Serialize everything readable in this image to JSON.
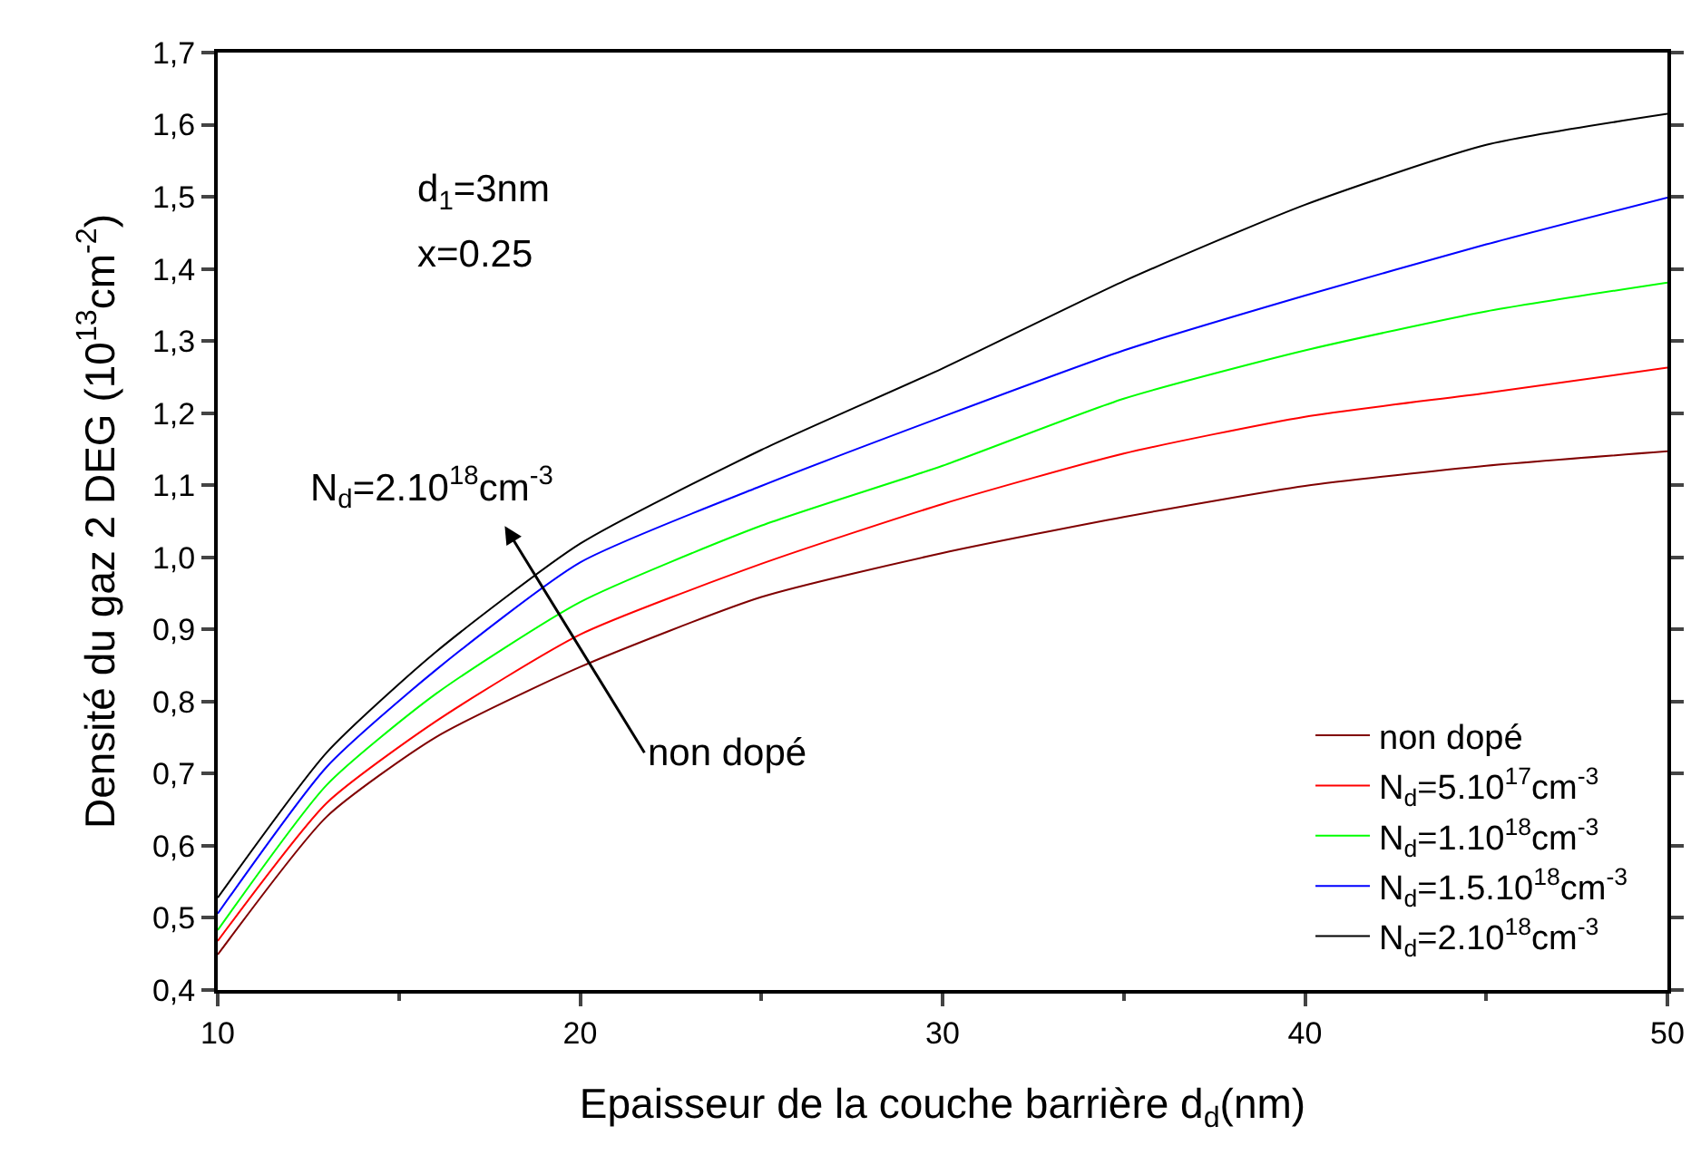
{
  "chart_data": {
    "type": "line",
    "xlabel": "Epaisseur de la couche barrière d$_{d}$(nm)",
    "ylabel": "Densité du gaz 2 DEG (10$^{13}$cm$^{-2}$)",
    "x": [
      10,
      13,
      16,
      20,
      25,
      30,
      35,
      40,
      45,
      50
    ],
    "series": [
      {
        "name": "non dopé",
        "color": "#800000",
        "values": [
          0.449,
          0.64,
          0.75,
          0.848,
          0.945,
          1.006,
          1.056,
          1.099,
          1.127,
          1.147
        ]
      },
      {
        "name": "N$_{d}$=5.10$^{17}$cm$^{-3}$",
        "color": "#ff0000",
        "values": [
          0.468,
          0.659,
          0.772,
          0.893,
          0.991,
          1.074,
          1.144,
          1.195,
          1.228,
          1.263
        ]
      },
      {
        "name": "N$_{d}$=1.10$^{18}$cm$^{-3}$",
        "color": "#00ff00",
        "values": [
          0.483,
          0.684,
          0.81,
          0.938,
          1.044,
          1.127,
          1.22,
          1.287,
          1.341,
          1.381
        ]
      },
      {
        "name": "N$_{d}$=1.5.10$^{18}$cm$^{-3}$",
        "color": "#0000ff",
        "values": [
          0.506,
          0.709,
          0.843,
          0.993,
          1.099,
          1.195,
          1.287,
          1.363,
          1.434,
          1.499
        ]
      },
      {
        "name": "N$_{d}$=2.10$^{18}$cm$^{-3}$",
        "color": "#000000",
        "values": [
          0.528,
          0.729,
          0.868,
          1.019,
          1.149,
          1.262,
          1.383,
          1.489,
          1.572,
          1.615
        ]
      }
    ],
    "xlim": [
      10,
      50
    ],
    "xticks": [
      10,
      20,
      30,
      40,
      50
    ],
    "ylim": [
      0.4,
      1.7
    ],
    "yticks": [
      {
        "value": 0.4,
        "label": "0,4"
      },
      {
        "value": 0.5,
        "label": "0,5"
      },
      {
        "value": 0.6,
        "label": "0,6"
      },
      {
        "value": 0.7,
        "label": "0,7"
      },
      {
        "value": 0.8,
        "label": "0,8"
      },
      {
        "value": 0.9,
        "label": "0,9"
      },
      {
        "value": 1.0,
        "label": "1,0"
      },
      {
        "value": 1.1,
        "label": "1,1"
      },
      {
        "value": 1.2,
        "label": "1,2"
      },
      {
        "value": 1.3,
        "label": "1,3"
      },
      {
        "value": 1.4,
        "label": "1,4"
      },
      {
        "value": 1.5,
        "label": "1,5"
      },
      {
        "value": 1.6,
        "label": "1,6"
      },
      {
        "value": 1.7,
        "label": "1,7"
      }
    ],
    "annotations": [
      "d$_{1}$=3nm",
      "x=0.25",
      "non dopé",
      "N$_{d}$=2.10$^{18}$cm$^{-3}$"
    ],
    "grid": false,
    "legend": "bottom right",
    "marker": "none",
    "line_style": "solid"
  }
}
